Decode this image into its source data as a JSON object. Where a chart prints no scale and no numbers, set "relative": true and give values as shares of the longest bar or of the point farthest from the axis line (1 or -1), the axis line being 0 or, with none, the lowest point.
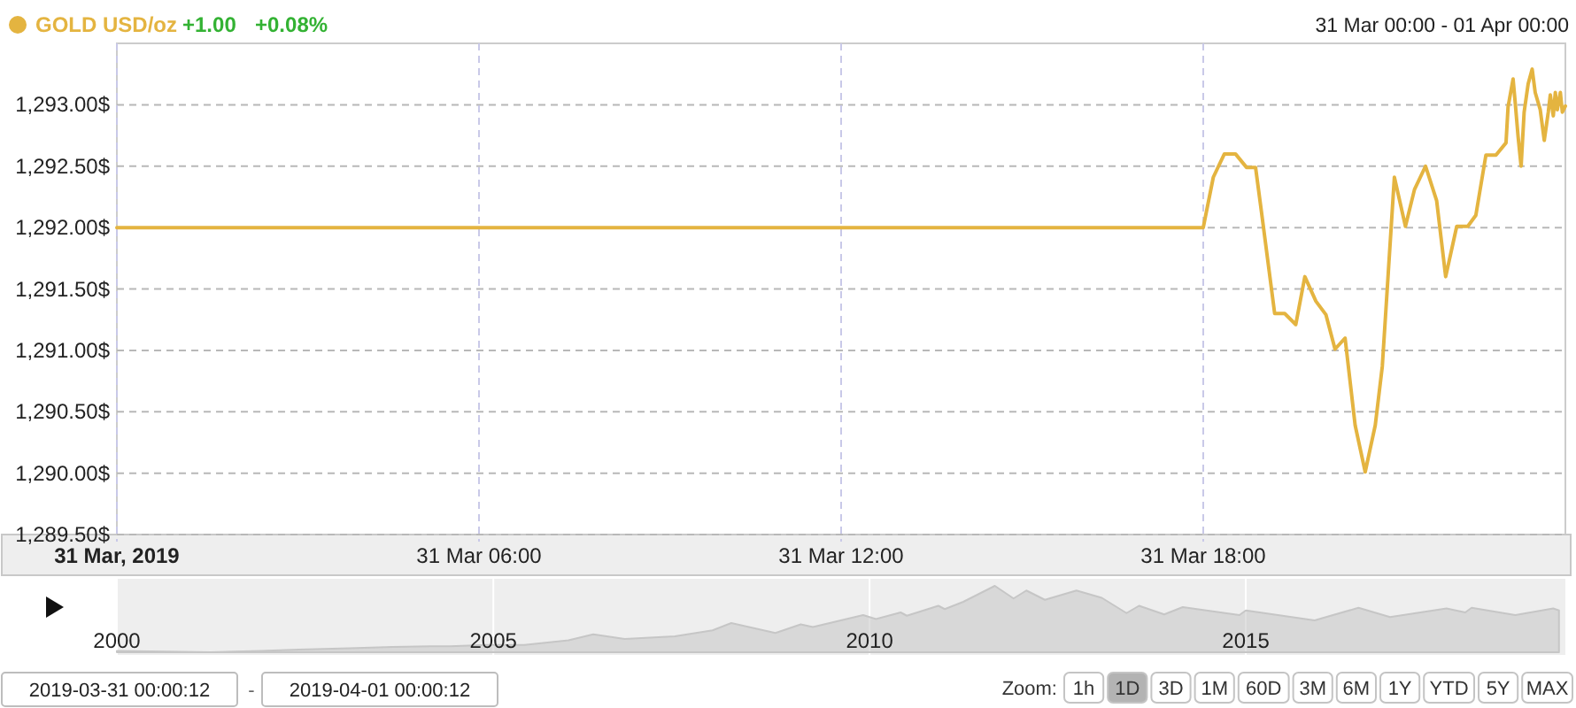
{
  "chart_data": [
    {
      "type": "line",
      "subtitle": "31 Mar 00:00 - 01 Apr 00:00",
      "annotations": [
        "+1.00",
        "+0.08%"
      ],
      "legend": "top left",
      "grid": true,
      "xlim": [
        "2019-03-31T00:00",
        "2019-04-01T00:00"
      ],
      "xticks": [
        {
          "value": "2019-03-31T00:00",
          "label": "31 Mar, 2019"
        },
        {
          "value": "2019-03-31T06:00",
          "label": "31 Mar 06:00"
        },
        {
          "value": "2019-03-31T12:00",
          "label": "31 Mar 12:00"
        },
        {
          "value": "2019-03-31T18:00",
          "label": "31 Mar 18:00"
        }
      ],
      "ylim": [
        1289.5,
        1293.5
      ],
      "yticks": [
        {
          "value": 1289.5,
          "label": "1,289.50$"
        },
        {
          "value": 1290,
          "label": "1,290.00$"
        },
        {
          "value": 1290.5,
          "label": "1,290.50$"
        },
        {
          "value": 1291,
          "label": "1,291.00$"
        },
        {
          "value": 1291.5,
          "label": "1,291.50$"
        },
        {
          "value": 1292,
          "label": "1,292.00$"
        },
        {
          "value": 1292.5,
          "label": "1,292.50$"
        },
        {
          "value": 1293,
          "label": "1,293.00$"
        }
      ],
      "series": [
        {
          "name": "GOLD USD/oz",
          "color": "#e4b440",
          "x": [
            "2019-03-31T00:00",
            "2019-03-31T18:00",
            "2019-03-31T18:10",
            "2019-03-31T18:21",
            "2019-03-31T18:32",
            "2019-03-31T18:43",
            "2019-03-31T18:52",
            "2019-03-31T18:58",
            "2019-03-31T19:11",
            "2019-03-31T19:21",
            "2019-03-31T19:32",
            "2019-03-31T19:41",
            "2019-03-31T19:52",
            "2019-03-31T20:02",
            "2019-03-31T20:11",
            "2019-03-31T20:21",
            "2019-03-31T20:31",
            "2019-03-31T20:41",
            "2019-03-31T20:51",
            "2019-03-31T20:58",
            "2019-03-31T21:04",
            "2019-03-31T21:10",
            "2019-03-31T21:21",
            "2019-03-31T21:30",
            "2019-03-31T21:41",
            "2019-03-31T21:52",
            "2019-03-31T22:01",
            "2019-03-31T22:12",
            "2019-03-31T22:23",
            "2019-03-31T22:31",
            "2019-03-31T22:41",
            "2019-03-31T22:51",
            "2019-03-31T23:01",
            "2019-03-31T23:03",
            "2019-03-31T23:08",
            "2019-03-31T23:10",
            "2019-03-31T23:13",
            "2019-03-31T23:16",
            "2019-03-31T23:19",
            "2019-03-31T23:23",
            "2019-03-31T23:27",
            "2019-03-31T23:30",
            "2019-03-31T23:35",
            "2019-03-31T23:39",
            "2019-03-31T23:43",
            "2019-03-31T23:45",
            "2019-03-31T23:48",
            "2019-03-31T23:50",
            "2019-03-31T23:52",
            "2019-03-31T23:55",
            "2019-03-31T23:57",
            "2019-04-01T00:00"
          ],
          "values": [
            1292.0,
            1292.0,
            1292.41,
            1292.6,
            1292.6,
            1292.49,
            1292.49,
            1292.12,
            1291.3,
            1291.3,
            1291.21,
            1291.6,
            1291.4,
            1291.29,
            1291.01,
            1291.1,
            1290.39,
            1290.01,
            1290.39,
            1290.87,
            1291.64,
            1292.41,
            1292.01,
            1292.31,
            1292.5,
            1292.22,
            1291.6,
            1292.01,
            1292.01,
            1292.1,
            1292.59,
            1292.59,
            1292.69,
            1292.98,
            1293.21,
            1293.03,
            1292.74,
            1292.5,
            1292.94,
            1293.17,
            1293.29,
            1293.1,
            1292.96,
            1292.71,
            1292.94,
            1293.08,
            1292.91,
            1293.1,
            1292.96,
            1293.1,
            1292.94,
            1292.99
          ]
        }
      ]
    },
    {
      "type": "area",
      "relative": true,
      "grid": "x",
      "xlim": [
        "2000-01",
        "2019-04"
      ],
      "xticks": [
        {
          "value": "2000",
          "label": "2000"
        },
        {
          "value": "2005",
          "label": "2005"
        },
        {
          "value": "2010",
          "label": "2010"
        },
        {
          "value": "2015",
          "label": "2015"
        }
      ],
      "series": [
        {
          "color": "#c6c6c6",
          "x": [
            "2000-01",
            "2000-09",
            "2001-04",
            "2001-12",
            "2002-06",
            "2003-02",
            "2003-09",
            "2004-03",
            "2004-06",
            "2004-12",
            "2005-06",
            "2006-01",
            "2006-05",
            "2006-10",
            "2007-06",
            "2007-12",
            "2008-03",
            "2008-10",
            "2009-02",
            "2009-04",
            "2009-12",
            "2010-02",
            "2010-06",
            "2010-07",
            "2010-12",
            "2011-01",
            "2011-04",
            "2011-09",
            "2011-12",
            "2012-02",
            "2012-05",
            "2012-10",
            "2013-02",
            "2013-06",
            "2013-08",
            "2013-12",
            "2014-03",
            "2014-12",
            "2015-01",
            "2015-12",
            "2016-07",
            "2016-12",
            "2017-09",
            "2017-12",
            "2018-01",
            "2018-08",
            "2019-02",
            "2019-03"
          ],
          "values": [
            0.02,
            0.01,
            0,
            0.02,
            0.04,
            0.06,
            0.08,
            0.09,
            0.09,
            0.11,
            0.11,
            0.18,
            0.27,
            0.2,
            0.24,
            0.33,
            0.44,
            0.29,
            0.42,
            0.38,
            0.56,
            0.5,
            0.6,
            0.55,
            0.7,
            0.65,
            0.76,
            1,
            0.81,
            0.93,
            0.79,
            0.93,
            0.82,
            0.59,
            0.7,
            0.57,
            0.68,
            0.56,
            0.63,
            0.48,
            0.67,
            0.53,
            0.66,
            0.6,
            0.67,
            0.56,
            0.66,
            0.63
          ]
        }
      ]
    },
    {
      "type": "other",
      "title": "Zoom:",
      "categories": [
        "1h",
        "1D",
        "3D",
        "1M",
        "60D",
        "3M",
        "6M",
        "1Y",
        "YTD",
        "5Y",
        "MAX"
      ],
      "colors": [
        "#ffffff",
        "#b3b3b3",
        "#ffffff",
        "#ffffff",
        "#ffffff",
        "#ffffff",
        "#ffffff",
        "#ffffff",
        "#ffffff",
        "#ffffff",
        "#ffffff"
      ],
      "annotations": [
        "2019-03-31 00:00:12",
        "-",
        "2019-04-01 00:00:12"
      ]
    }
  ]
}
